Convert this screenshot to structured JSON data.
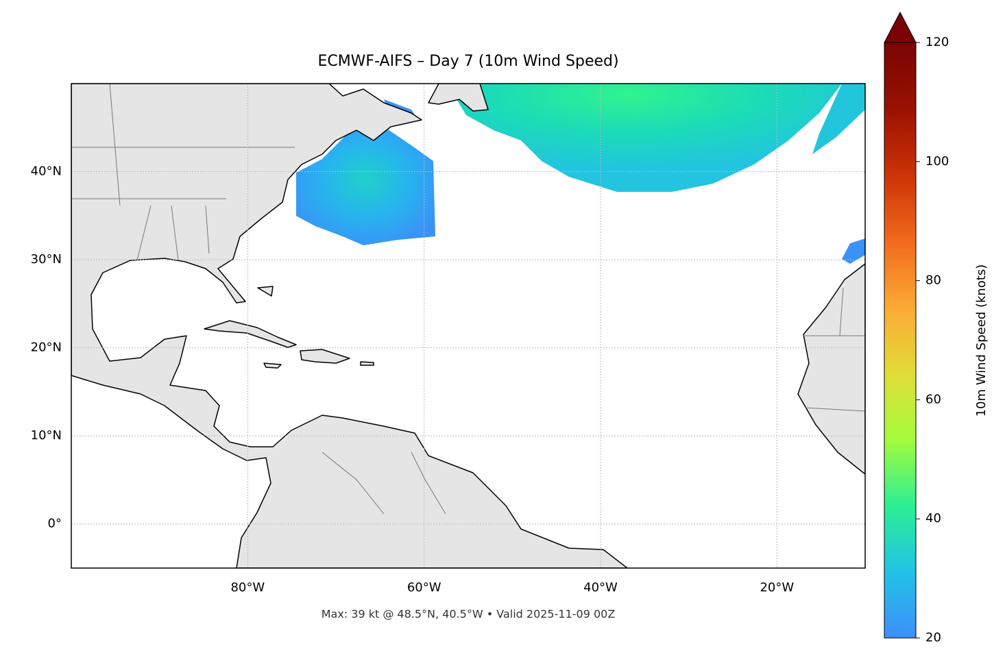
{
  "chart_data": {
    "type": "map",
    "title": "ECMWF-AIFS – Day 7 (10m Wind Speed)",
    "footnote": "Max: 39 kt @ 48.5°N, 40.5°W • Valid 2025-11-09 00Z",
    "xlim": [
      -100,
      -10
    ],
    "ylim": [
      -5,
      50
    ],
    "xticks": [
      {
        "value": -80,
        "label": "80°W"
      },
      {
        "value": -60,
        "label": "60°W"
      },
      {
        "value": -40,
        "label": "40°W"
      },
      {
        "value": -20,
        "label": "20°W"
      }
    ],
    "yticks": [
      {
        "value": 0,
        "label": "0°"
      },
      {
        "value": 10,
        "label": "10°N"
      },
      {
        "value": 20,
        "label": "20°N"
      },
      {
        "value": 30,
        "label": "30°N"
      },
      {
        "value": 40,
        "label": "40°N"
      }
    ],
    "grid": true,
    "colorbar": {
      "label": "10m Wind Speed (knots)",
      "lim": [
        20,
        120
      ],
      "ticks": [
        20,
        40,
        60,
        80,
        100,
        120
      ],
      "extend": "max",
      "colors": [
        "#3d8ff9",
        "#21c2e6",
        "#2bef93",
        "#a4fc3c",
        "#e1dd37",
        "#fca935",
        "#f06a1c",
        "#cc3306",
        "#9a1102",
        "#7a0403"
      ]
    }
  }
}
